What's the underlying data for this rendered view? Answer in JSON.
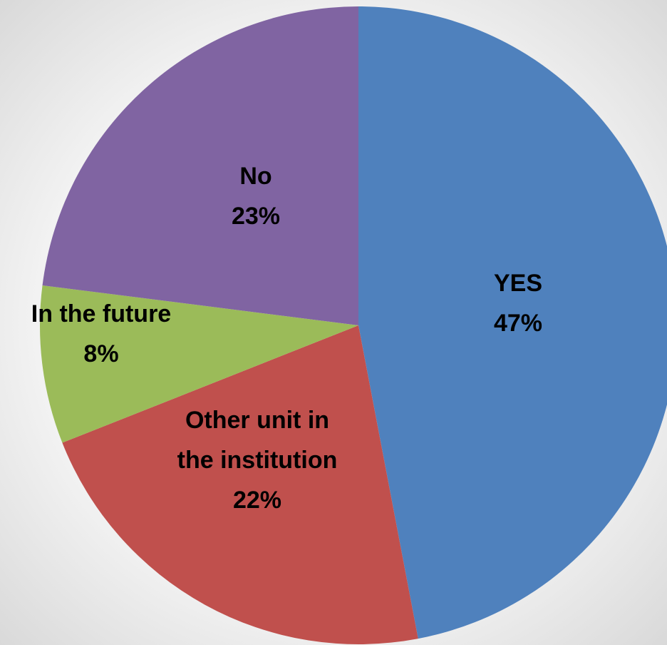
{
  "chart_data": {
    "type": "pie",
    "title": "",
    "categories": [
      "YES",
      "Other unit in the institution",
      "In the future",
      "No"
    ],
    "values": [
      47,
      22,
      8,
      23
    ],
    "labels": [
      {
        "lines": [
          "YES",
          "47%"
        ]
      },
      {
        "lines": [
          "Other unit in",
          "the institution",
          "22%"
        ]
      },
      {
        "lines": [
          "In the future",
          "8%"
        ]
      },
      {
        "lines": [
          "No",
          "23%"
        ]
      }
    ],
    "colors": [
      "#4F81BD",
      "#C0504D",
      "#9BBB59",
      "#8064A2"
    ],
    "start_angle": "12 o'clock",
    "direction": "clockwise",
    "legend": "none"
  }
}
